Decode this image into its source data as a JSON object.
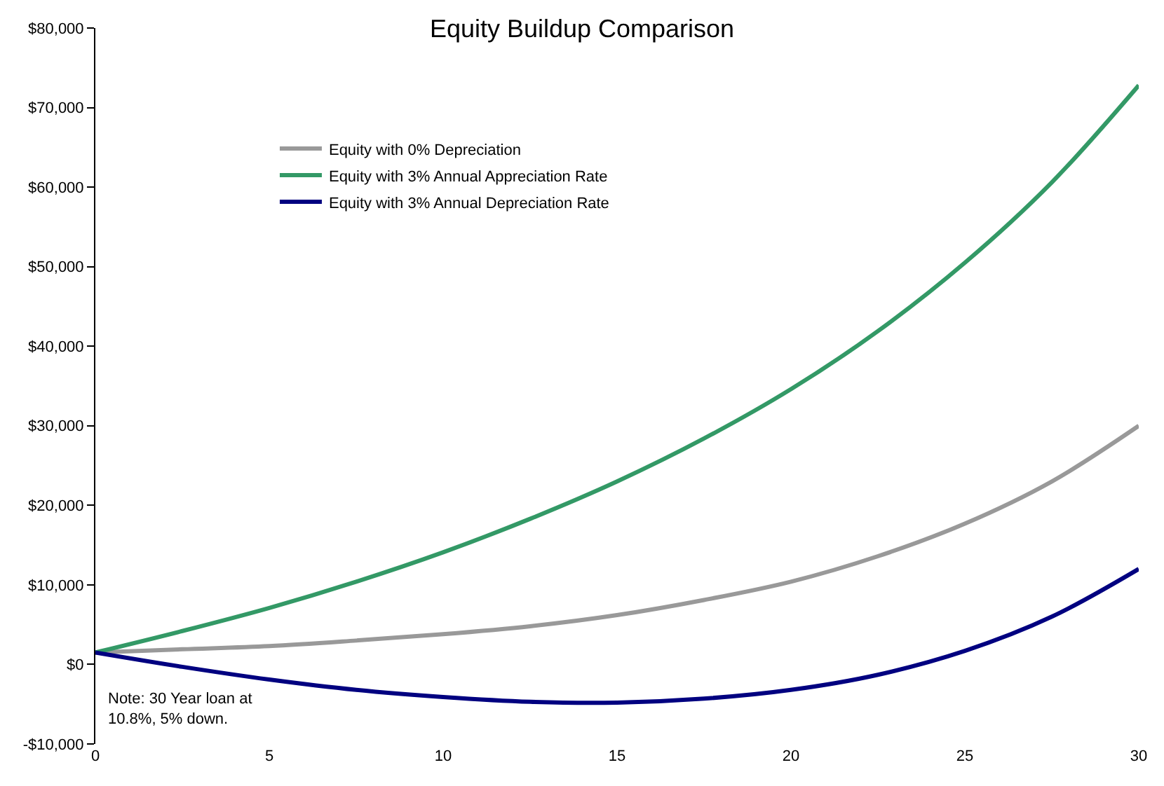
{
  "chart_data": {
    "type": "line",
    "title": "Equity Buildup Comparison",
    "x": [
      0,
      2.5,
      5,
      7.5,
      10,
      12.5,
      15,
      17.5,
      20,
      22.5,
      25,
      27.5,
      30
    ],
    "series": [
      {
        "name": "Equity with 0% Depreciation",
        "color": "#999999",
        "values": [
          1500,
          1900,
          2300,
          3000,
          3800,
          4800,
          6200,
          8100,
          10400,
          13600,
          17700,
          23000,
          30000
        ]
      },
      {
        "name": "Equity with 3% Annual Appreciation Rate",
        "color": "#339966",
        "values": [
          1500,
          4200,
          7100,
          10400,
          14100,
          18300,
          23000,
          28400,
          34600,
          41900,
          50500,
          60600,
          72800
        ]
      },
      {
        "name": "Equity with 3% Annual Depreciation Rate",
        "color": "#000080",
        "values": [
          1500,
          -300,
          -1900,
          -3200,
          -4100,
          -4700,
          -4800,
          -4300,
          -3200,
          -1300,
          1700,
          6000,
          12000
        ]
      }
    ],
    "xlim": [
      0,
      30
    ],
    "xticks": [
      0,
      5,
      10,
      15,
      20,
      25,
      30
    ],
    "ylim": [
      -10000,
      80000
    ],
    "yticks": [
      {
        "value": -10000,
        "label": "-$10,000"
      },
      {
        "value": 0,
        "label": "$0"
      },
      {
        "value": 10000,
        "label": "$10,000"
      },
      {
        "value": 20000,
        "label": "$20,000"
      },
      {
        "value": 30000,
        "label": "$30,000"
      },
      {
        "value": 40000,
        "label": "$40,000"
      },
      {
        "value": 50000,
        "label": "$50,000"
      },
      {
        "value": 60000,
        "label": "$60,000"
      },
      {
        "value": 70000,
        "label": "$70,000"
      },
      {
        "value": 80000,
        "label": "$80,000"
      }
    ],
    "grid": false,
    "legend": "top left",
    "marker": "none",
    "line_style": "solid",
    "annotations": [
      "Note: 30 Year loan at\n10.8%, 5% down."
    ]
  }
}
